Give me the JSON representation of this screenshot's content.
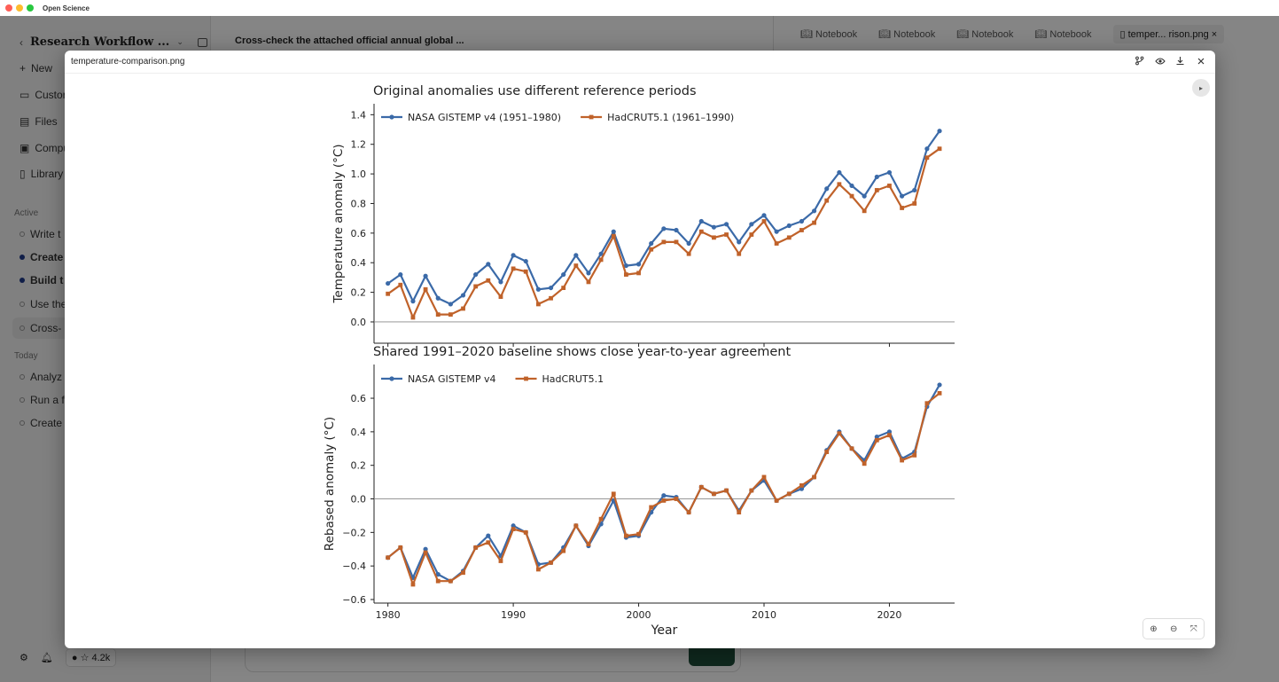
{
  "window": {
    "app_title": "Open Science"
  },
  "sidebar": {
    "project_title": "Research Workflow ...",
    "new_label": "New",
    "nav": [
      "Custor",
      "Files",
      "Compu",
      "Library"
    ],
    "active_header": "Active",
    "active_items": [
      {
        "label": "Write t",
        "bold": false
      },
      {
        "label": "Create",
        "bold": true
      },
      {
        "label": "Build t",
        "bold": true
      },
      {
        "label": "Use the",
        "bold": false
      },
      {
        "label": "Cross-",
        "bold": false
      }
    ],
    "today_header": "Today",
    "today_items": [
      "Analyz",
      "Run a f",
      "Create"
    ],
    "github_stars": "☆ 4.2k"
  },
  "main": {
    "task_title": "Cross-check the attached official annual global ..."
  },
  "tabs": [
    "Notebook",
    "Notebook",
    "Notebook",
    "Notebook"
  ],
  "active_tab": "temper... rison.png",
  "modal": {
    "filename": "temperature-comparison.png"
  },
  "colors": {
    "nasa": "#3b6aa8",
    "hadcrut": "#c0622a"
  },
  "chart_data": [
    {
      "type": "line",
      "title": "Original anomalies use different reference periods",
      "ylabel": "Temperature anomaly (°C)",
      "xlabel": "",
      "ylim": [
        -0.12,
        1.45
      ],
      "yticks": [
        "0.0",
        "0.2",
        "0.4",
        "0.6",
        "0.8",
        "1.0",
        "1.2",
        "1.4"
      ],
      "ytick_values": [
        0,
        0.2,
        0.4,
        0.6,
        0.8,
        1.0,
        1.2,
        1.4
      ],
      "legend": "top-left",
      "x": [
        1980,
        1981,
        1982,
        1983,
        1984,
        1985,
        1986,
        1987,
        1988,
        1989,
        1990,
        1991,
        1992,
        1993,
        1994,
        1995,
        1996,
        1997,
        1998,
        1999,
        2000,
        2001,
        2002,
        2003,
        2004,
        2005,
        2006,
        2007,
        2008,
        2009,
        2010,
        2011,
        2012,
        2013,
        2014,
        2015,
        2016,
        2017,
        2018,
        2019,
        2020,
        2021,
        2022,
        2023,
        2024
      ],
      "series": [
        {
          "name": "NASA GISTEMP v4 (1951–1980)",
          "values": [
            0.26,
            0.32,
            0.14,
            0.31,
            0.16,
            0.12,
            0.18,
            0.32,
            0.39,
            0.27,
            0.45,
            0.41,
            0.22,
            0.23,
            0.32,
            0.45,
            0.33,
            0.46,
            0.61,
            0.38,
            0.39,
            0.53,
            0.63,
            0.62,
            0.53,
            0.68,
            0.64,
            0.66,
            0.54,
            0.66,
            0.72,
            0.61,
            0.65,
            0.68,
            0.75,
            0.9,
            1.01,
            0.92,
            0.85,
            0.98,
            1.01,
            0.85,
            0.89,
            1.17,
            1.29
          ]
        },
        {
          "name": "HadCRUT5.1 (1961–1990)",
          "values": [
            0.19,
            0.25,
            0.03,
            0.22,
            0.05,
            0.05,
            0.09,
            0.24,
            0.28,
            0.17,
            0.36,
            0.34,
            0.12,
            0.16,
            0.23,
            0.38,
            0.27,
            0.42,
            0.58,
            0.32,
            0.33,
            0.49,
            0.54,
            0.54,
            0.46,
            0.61,
            0.57,
            0.59,
            0.46,
            0.59,
            0.68,
            0.53,
            0.57,
            0.62,
            0.67,
            0.82,
            0.93,
            0.85,
            0.75,
            0.89,
            0.92,
            0.77,
            0.8,
            1.11,
            1.17
          ]
        }
      ]
    },
    {
      "type": "line",
      "title": "Shared 1991–2020 baseline shows close year-to-year agreement",
      "ylabel": "Rebased anomaly (°C)",
      "xlabel": "Year",
      "ylim": [
        -0.6,
        0.78
      ],
      "yticks": [
        "−0.6",
        "−0.4",
        "−0.2",
        "0.0",
        "0.2",
        "0.4",
        "0.6"
      ],
      "ytick_values": [
        -0.6,
        -0.4,
        -0.2,
        0,
        0.2,
        0.4,
        0.6
      ],
      "xticks": [
        "1980",
        "1990",
        "2000",
        "2010",
        "2020"
      ],
      "xtick_values": [
        1980,
        1990,
        2000,
        2010,
        2020
      ],
      "legend": "top-left",
      "x": [
        1980,
        1981,
        1982,
        1983,
        1984,
        1985,
        1986,
        1987,
        1988,
        1989,
        1990,
        1991,
        1992,
        1993,
        1994,
        1995,
        1996,
        1997,
        1998,
        1999,
        2000,
        2001,
        2002,
        2003,
        2004,
        2005,
        2006,
        2007,
        2008,
        2009,
        2010,
        2011,
        2012,
        2013,
        2014,
        2015,
        2016,
        2017,
        2018,
        2019,
        2020,
        2021,
        2022,
        2023,
        2024
      ],
      "series": [
        {
          "name": "NASA GISTEMP v4",
          "values": [
            -0.35,
            -0.29,
            -0.47,
            -0.3,
            -0.45,
            -0.49,
            -0.43,
            -0.29,
            -0.22,
            -0.34,
            -0.16,
            -0.2,
            -0.39,
            -0.38,
            -0.29,
            -0.16,
            -0.28,
            -0.15,
            -0.01,
            -0.23,
            -0.22,
            -0.08,
            0.02,
            0.01,
            -0.08,
            0.07,
            0.03,
            0.05,
            -0.07,
            0.05,
            0.11,
            -0.01,
            0.03,
            0.06,
            0.13,
            0.29,
            0.4,
            0.3,
            0.23,
            0.37,
            0.4,
            0.24,
            0.28,
            0.55,
            0.68
          ]
        },
        {
          "name": "HadCRUT5.1",
          "values": [
            -0.35,
            -0.29,
            -0.51,
            -0.32,
            -0.49,
            -0.49,
            -0.44,
            -0.29,
            -0.26,
            -0.37,
            -0.18,
            -0.2,
            -0.42,
            -0.38,
            -0.31,
            -0.16,
            -0.27,
            -0.12,
            0.03,
            -0.22,
            -0.21,
            -0.05,
            -0.01,
            0.0,
            -0.08,
            0.07,
            0.03,
            0.05,
            -0.08,
            0.05,
            0.13,
            -0.01,
            0.03,
            0.08,
            0.13,
            0.28,
            0.39,
            0.3,
            0.21,
            0.35,
            0.38,
            0.23,
            0.26,
            0.57,
            0.63
          ]
        }
      ]
    }
  ]
}
